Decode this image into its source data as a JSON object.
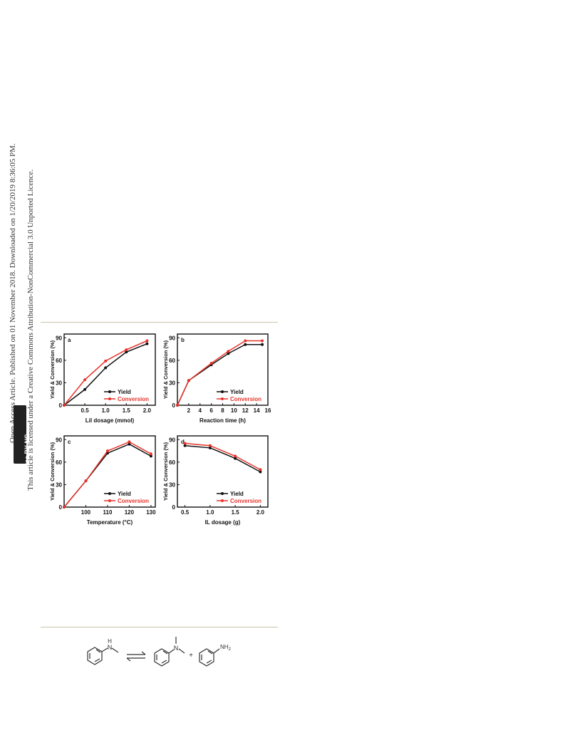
{
  "sidebar": {
    "line1": "Open Access Article. Published on 01 November 2018. Downloaded on 1/20/2019 8:36:05 PM.",
    "line2": "This article is licensed under a Creative Commons Attribution-NonCommercial 3.0 Unported Licence.",
    "badge": "cc BY-NC"
  },
  "chart_data": [
    {
      "type": "line",
      "panel": "a",
      "xlabel": "LiI dosage (mmol)",
      "ylabel": "Yield & Conversion (%)",
      "xlim": [
        0,
        2.2
      ],
      "ylim": [
        0,
        95
      ],
      "xticks": [
        0.5,
        1.0,
        1.5,
        2.0
      ],
      "xtick_labels": [
        "0.5",
        "1.0",
        "1.5",
        "2.0"
      ],
      "yticks": [
        0,
        30,
        60,
        90
      ],
      "x": [
        0,
        0.5,
        1.0,
        1.5,
        2.0
      ],
      "series": [
        {
          "name": "Yield",
          "values": [
            0,
            21,
            50,
            71,
            82
          ],
          "color": "#111111"
        },
        {
          "name": "Conversion",
          "values": [
            0,
            34,
            59,
            74,
            86
          ],
          "color": "#e8332a"
        }
      ],
      "legend": "bottom-right"
    },
    {
      "type": "line",
      "panel": "b",
      "xlabel": "Reaction time (h)",
      "ylabel": "Yield & Conversion (%)",
      "xlim": [
        0,
        16
      ],
      "ylim": [
        0,
        95
      ],
      "xticks": [
        2,
        4,
        6,
        8,
        10,
        12,
        14,
        16
      ],
      "xtick_labels": [
        "2",
        "4",
        "6",
        "8",
        "10",
        "12",
        "14",
        "16"
      ],
      "yticks": [
        0,
        30,
        60,
        90
      ],
      "x": [
        0,
        2,
        6,
        9,
        12,
        15
      ],
      "series": [
        {
          "name": "Yield",
          "values": [
            0,
            33,
            54,
            69,
            81,
            81
          ],
          "color": "#111111"
        },
        {
          "name": "Conversion",
          "values": [
            0,
            33,
            56,
            72,
            86,
            86
          ],
          "color": "#e8332a"
        }
      ],
      "legend": "bottom-right"
    },
    {
      "type": "line",
      "panel": "c",
      "xlabel": "Temperature (°C)",
      "ylabel": "Yield & Conversion (%)",
      "xlim": [
        90,
        132
      ],
      "ylim": [
        0,
        95
      ],
      "xticks": [
        100,
        110,
        120,
        130
      ],
      "xtick_labels": [
        "100",
        "110",
        "120",
        "130"
      ],
      "yticks": [
        0,
        30,
        60,
        90
      ],
      "x": [
        90,
        100,
        110,
        120,
        130
      ],
      "series": [
        {
          "name": "Yield",
          "values": [
            0,
            35,
            72,
            84,
            68
          ],
          "color": "#111111"
        },
        {
          "name": "Conversion",
          "values": [
            0,
            35,
            75,
            87,
            71
          ],
          "color": "#e8332a"
        }
      ],
      "legend": "bottom-right"
    },
    {
      "type": "line",
      "panel": "d",
      "xlabel": "IL dosage (g)",
      "ylabel": "Yield & Conversion (%)",
      "xlim": [
        0.35,
        2.15
      ],
      "ylim": [
        0,
        95
      ],
      "xticks": [
        0.5,
        1.0,
        1.5,
        2.0
      ],
      "xtick_labels": [
        "0.5",
        "1.0",
        "1.5",
        "2.0"
      ],
      "yticks": [
        0,
        30,
        60,
        90
      ],
      "x": [
        0.5,
        1.0,
        1.5,
        2.0
      ],
      "series": [
        {
          "name": "Yield",
          "values": [
            82,
            79,
            65,
            47
          ],
          "color": "#111111"
        },
        {
          "name": "Conversion",
          "values": [
            85,
            82,
            68,
            50
          ],
          "color": "#e8332a"
        }
      ],
      "legend": "bottom-right"
    }
  ],
  "scheme": {
    "label_nh": "H",
    "label_n1": "N",
    "label_n2": "N",
    "label_nh2": "NH",
    "label_nh2_sub": "2",
    "plus": "+"
  }
}
